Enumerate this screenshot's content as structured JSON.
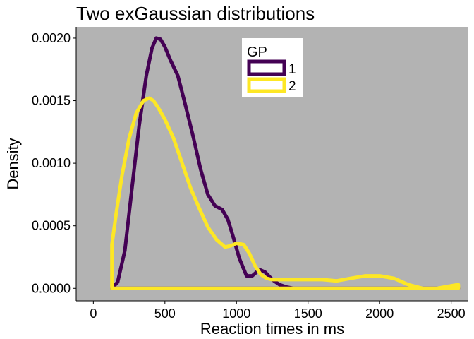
{
  "chart_data": {
    "type": "line",
    "subtype": "density",
    "title": "Two exGaussian distributions",
    "xlabel": "Reaction times in ms",
    "ylabel": "Density",
    "xlim": [
      -120,
      2620
    ],
    "ylim": [
      -0.0001,
      0.00209
    ],
    "xticks": [
      0,
      500,
      1000,
      1500,
      2000,
      2500
    ],
    "xtick_labels": [
      "0",
      "500",
      "1000",
      "1500",
      "2000",
      "2500"
    ],
    "yticks": [
      0,
      0.0005,
      0.001,
      0.0015,
      0.002
    ],
    "ytick_labels": [
      "0.0000",
      "0.0005",
      "0.0010",
      "0.0015",
      "0.0020"
    ],
    "grid": false,
    "panel_background": "#b3b3b3",
    "legend": {
      "title": "GP",
      "placement": "top-center-inside"
    },
    "series": [
      {
        "name": "1",
        "color": "#440154",
        "x": [
          130,
          170,
          220,
          270,
          320,
          370,
          410,
          440,
          470,
          500,
          540,
          590,
          640,
          700,
          750,
          800,
          850,
          900,
          940,
          980,
          1020,
          1070,
          1110,
          1160,
          1200,
          1250,
          1300,
          1350,
          1400,
          1500,
          1600,
          1700,
          1800,
          1900,
          2000,
          2100,
          2200,
          2300,
          2400,
          2550
        ],
        "y": [
          0.0,
          5e-05,
          0.0003,
          0.0008,
          0.0013,
          0.0017,
          0.00192,
          0.002,
          0.00199,
          0.00193,
          0.00182,
          0.0017,
          0.00148,
          0.0012,
          0.00095,
          0.00075,
          0.00066,
          0.00063,
          0.00055,
          0.0004,
          0.00024,
          0.0001,
          0.0001,
          0.00015,
          0.00013,
          7e-05,
          3e-05,
          1e-05,
          0.0,
          0.0,
          0.0,
          0.0,
          0.0,
          0.0,
          0.0,
          0.0,
          0.0,
          0.0,
          0.0,
          0.0
        ]
      },
      {
        "name": "2",
        "color": "#fde725",
        "x": [
          130,
          160,
          200,
          250,
          300,
          350,
          390,
          420,
          450,
          500,
          560,
          620,
          680,
          740,
          800,
          860,
          920,
          960,
          1000,
          1050,
          1090,
          1130,
          1170,
          1210,
          1250,
          1300,
          1400,
          1500,
          1600,
          1700,
          1800,
          1900,
          1950,
          2000,
          2100,
          2200,
          2300,
          2400,
          2500,
          2550
        ],
        "y": [
          0.00035,
          0.0006,
          0.0009,
          0.0012,
          0.0014,
          0.0015,
          0.00152,
          0.0015,
          0.00145,
          0.00135,
          0.0012,
          0.001,
          0.0008,
          0.00064,
          0.00049,
          0.00039,
          0.00033,
          0.00034,
          0.00036,
          0.00035,
          0.00028,
          0.00018,
          0.00011,
          8e-05,
          7e-05,
          7e-05,
          7e-05,
          7e-05,
          7e-05,
          6e-05,
          8e-05,
          0.0001,
          0.0001,
          0.0001,
          8e-05,
          3e-05,
          0.0,
          0.0,
          2e-05,
          3e-05
        ]
      }
    ]
  }
}
